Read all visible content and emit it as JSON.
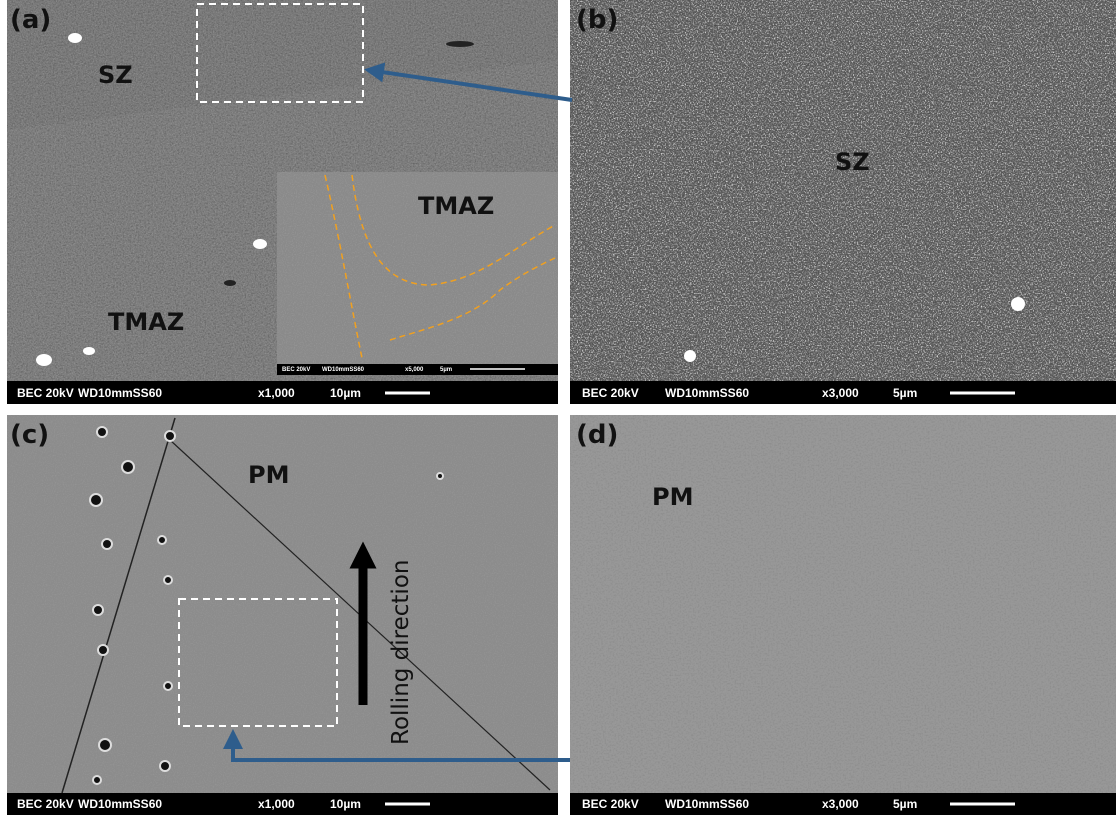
{
  "panels": [
    {
      "label": "(a)",
      "annotations": [
        "SZ",
        "TMAZ"
      ],
      "info_bar": {
        "mode": "BEC 20kV",
        "working_distance": "WD10mmSS60",
        "magnification": "x1,000",
        "scale": "10µm"
      },
      "inset": {
        "annotation": "TMAZ",
        "info_bar": {
          "mode": "BEC 20kV",
          "working_distance": "WD10mmSS60",
          "magnification": "x5,000",
          "scale": "5µm"
        }
      }
    },
    {
      "label": "(b)",
      "annotations": [
        "SZ"
      ],
      "info_bar": {
        "mode": "BEC 20kV",
        "working_distance": "WD10mmSS60",
        "magnification": "x3,000",
        "scale": "5µm"
      }
    },
    {
      "label": "(c)",
      "annotations": [
        "PM",
        "Rolling direction"
      ],
      "info_bar": {
        "mode": "BEC 20kV",
        "working_distance": "WD10mmSS60",
        "magnification": "x1,000",
        "scale": "10µm"
      }
    },
    {
      "label": "(d)",
      "annotations": [
        "PM"
      ],
      "info_bar": {
        "mode": "BEC 20kV",
        "working_distance": "WD10mmSS60",
        "magnification": "x3,000",
        "scale": "5µm"
      }
    }
  ]
}
